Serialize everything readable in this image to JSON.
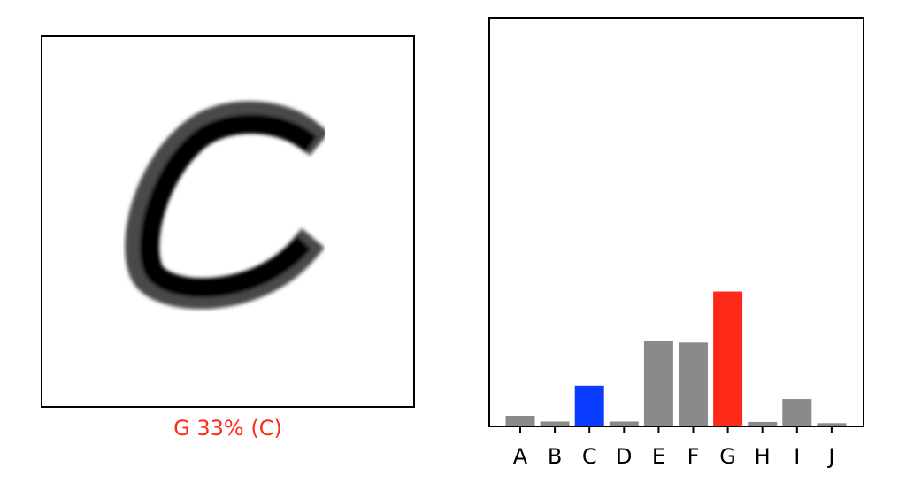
{
  "image_panel": {
    "glyph": "C",
    "caption": "G 33% (C)",
    "caption_color": "#ff2a1a"
  },
  "chart_data": {
    "type": "bar",
    "categories": [
      "A",
      "B",
      "C",
      "D",
      "E",
      "F",
      "G",
      "H",
      "I",
      "J"
    ],
    "values": [
      0.026,
      0.012,
      0.1,
      0.012,
      0.21,
      0.205,
      0.33,
      0.011,
      0.067,
      0.008
    ],
    "ylim": [
      0,
      1.0
    ],
    "predicted": "G",
    "true_label": "C",
    "colors": {
      "default": "#8a8a8a",
      "predicted": "#ff2a1a",
      "true": "#0a3cff"
    },
    "grid": false,
    "title": "",
    "xlabel": "",
    "ylabel": ""
  }
}
